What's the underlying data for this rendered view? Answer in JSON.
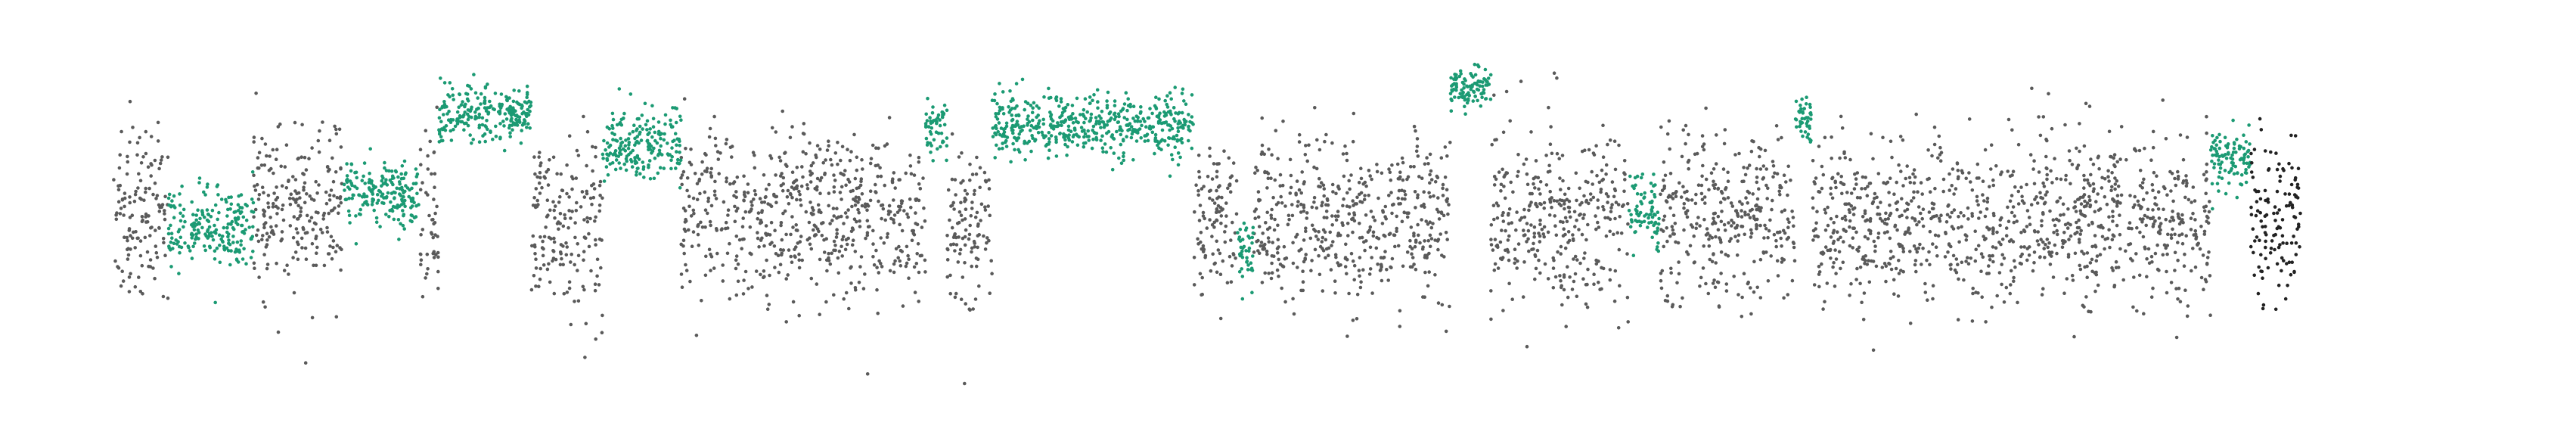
{
  "chart_data": {
    "type": "scatter",
    "title": "",
    "xlabel": "",
    "ylabel": "",
    "axes_visible": false,
    "grid": false,
    "legend": "none",
    "xlim": [
      0,
      100
    ],
    "ylim": [
      -1.3,
      1.3
    ],
    "colors": {
      "normal": "#5a5a5a",
      "altered": "#1b9a73",
      "dense_tail": "#222222"
    },
    "segments": [
      {
        "x": [
          0.0,
          2.3
        ],
        "mean": 0.02,
        "sd": 0.28,
        "state": "normal"
      },
      {
        "x": [
          2.3,
          5.9
        ],
        "mean": -0.05,
        "sd": 0.12,
        "state": "altered"
      },
      {
        "x": [
          5.9,
          9.7
        ],
        "mean": 0.05,
        "sd": 0.27,
        "state": "normal"
      },
      {
        "x": [
          9.7,
          12.9
        ],
        "mean": 0.18,
        "sd": 0.1,
        "state": "altered"
      },
      {
        "x": [
          12.9,
          13.7
        ],
        "mean": -0.02,
        "sd": 0.25,
        "state": "normal"
      },
      {
        "x": [
          13.7,
          17.6
        ],
        "mean": 0.67,
        "sd": 0.08,
        "state": "altered"
      },
      {
        "x": [
          17.6,
          20.6
        ],
        "mean": 0.0,
        "sd": 0.27,
        "state": "normal"
      },
      {
        "x": [
          20.6,
          23.9
        ],
        "mean": 0.48,
        "sd": 0.12,
        "state": "altered"
      },
      {
        "x": [
          23.9,
          34.2
        ],
        "mean": 0.0,
        "sd": 0.27,
        "state": "normal"
      },
      {
        "x": [
          34.2,
          35.1
        ],
        "mean": 0.57,
        "sd": 0.1,
        "state": "altered"
      },
      {
        "x": [
          35.1,
          37.0
        ],
        "mean": -0.02,
        "sd": 0.25,
        "state": "normal"
      },
      {
        "x": [
          37.0,
          45.5
        ],
        "mean": 0.6,
        "sd": 0.1,
        "state": "altered"
      },
      {
        "x": [
          45.5,
          47.3
        ],
        "mean": -0.02,
        "sd": 0.25,
        "state": "normal"
      },
      {
        "x": [
          47.3,
          48.0
        ],
        "mean": -0.2,
        "sd": 0.12,
        "state": "altered"
      },
      {
        "x": [
          48.0,
          56.3
        ],
        "mean": 0.0,
        "sd": 0.27,
        "state": "normal"
      },
      {
        "x": [
          56.3,
          58.0
        ],
        "mean": 0.82,
        "sd": 0.06,
        "state": "altered"
      },
      {
        "x": [
          58.0,
          63.8
        ],
        "mean": 0.02,
        "sd": 0.27,
        "state": "normal"
      },
      {
        "x": [
          63.8,
          65.1
        ],
        "mean": 0.05,
        "sd": 0.12,
        "state": "altered"
      },
      {
        "x": [
          65.1,
          70.8
        ],
        "mean": 0.0,
        "sd": 0.28,
        "state": "normal"
      },
      {
        "x": [
          70.8,
          71.5
        ],
        "mean": 0.64,
        "sd": 0.08,
        "state": "altered"
      },
      {
        "x": [
          71.5,
          88.3
        ],
        "mean": 0.0,
        "sd": 0.27,
        "state": "normal"
      },
      {
        "x": [
          88.3,
          90.0
        ],
        "mean": 0.38,
        "sd": 0.1,
        "state": "altered"
      },
      {
        "x": [
          90.0,
          92.1
        ],
        "mean": 0.0,
        "sd": 0.28,
        "state": "dense_tail"
      }
    ]
  }
}
